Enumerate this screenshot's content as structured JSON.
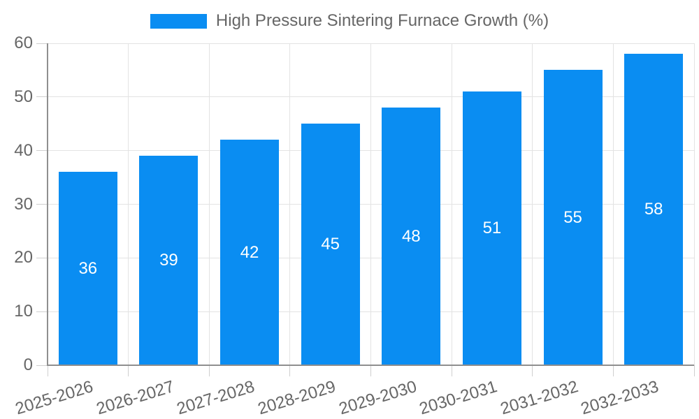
{
  "chart_data": {
    "type": "bar",
    "title": "High Pressure Sintering Furnace Growth (%)",
    "legend_label": "High Pressure Sintering Furnace Growth (%)",
    "legend_position": "top",
    "categories": [
      "2025-2026",
      "2026-2027",
      "2027-2028",
      "2028-2029",
      "2029-2030",
      "2030-2031",
      "2031-2032",
      "2032-2033"
    ],
    "values": [
      36,
      39,
      42,
      45,
      48,
      51,
      55,
      58
    ],
    "value_labels_shown": true,
    "xlabel": "",
    "ylabel": "",
    "ylim": [
      0,
      60
    ],
    "yticks": [
      0,
      10,
      20,
      30,
      40,
      50,
      60
    ],
    "grid": true,
    "colors": {
      "bar": "#0a8df2",
      "value_label": "#ffffff",
      "tick_text": "#666666",
      "legend_text": "#666666",
      "gridline": "#e3e3e3",
      "tick_mark": "#cfcfcf",
      "axis_border": "#8f8f8f",
      "background": "#ffffff"
    }
  }
}
